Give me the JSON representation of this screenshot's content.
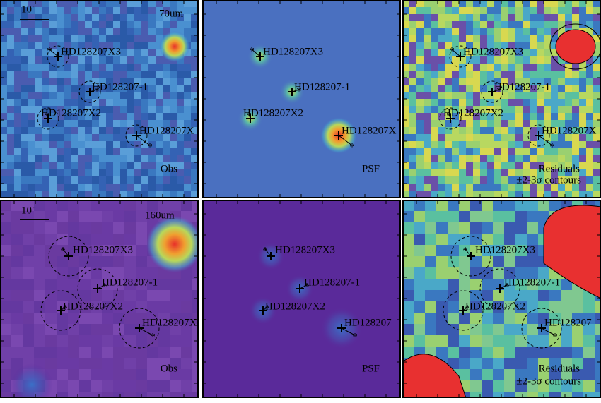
{
  "panels": [
    {
      "scale": "10\"",
      "band": "70um",
      "sources": [
        "HD128207X3",
        "HD128207-1",
        "HD128207X2",
        "HD128207X"
      ],
      "corner": "Obs"
    },
    {
      "sources": [
        "HD128207X3",
        "HD128207-1",
        "HD128207X2",
        "HD128207X"
      ],
      "corner": "PSF"
    },
    {
      "sources": [
        "HD128207X3",
        "HD128207-1",
        "HD128207X2",
        "HD128207X"
      ],
      "corner": "Residuals",
      "corner2": "±2-3σ contours"
    },
    {
      "scale": "10\"",
      "band": "160um",
      "sources": [
        "HD128207X3",
        "HD128207-1",
        "HD128207X2",
        "HD128207X"
      ],
      "corner": "Obs"
    },
    {
      "sources": [
        "HD128207X3",
        "HD128207-1",
        "HD128207X2",
        "HD128207"
      ],
      "corner": "PSF"
    },
    {
      "sources": [
        "HD128207X3",
        "HD128207-1",
        "HD128207X2",
        "HD128207"
      ],
      "corner": "Residuals",
      "corner2": "±2-3σ contours"
    }
  ]
}
